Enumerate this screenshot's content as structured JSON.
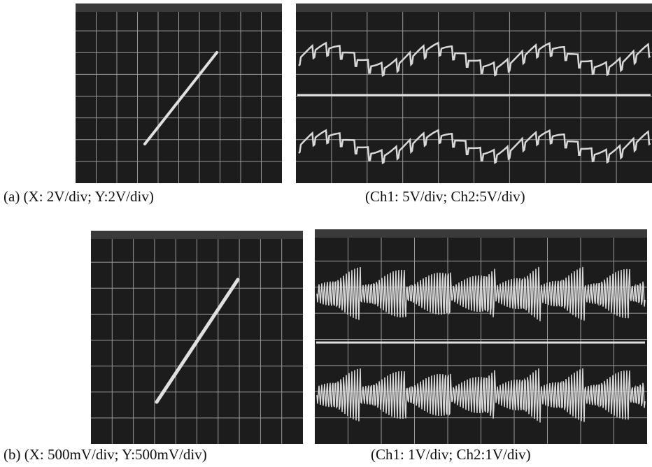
{
  "panels": [
    {
      "xy_caption": "(a) (X: 2V/div; Y:2V/div)",
      "time_caption": "(Ch1: 5V/div; Ch2:5V/div)"
    },
    {
      "xy_caption": "(b) (X: 500mV/div; Y:500mV/div)",
      "time_caption": "(Ch1: 1V/div; Ch2:1V/div)"
    }
  ]
}
